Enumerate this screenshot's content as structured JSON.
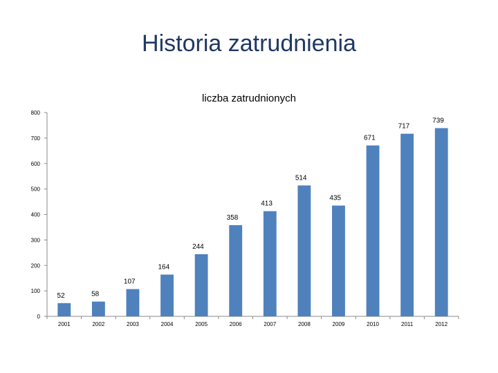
{
  "slide": {
    "title": "Historia zatrudnienia"
  },
  "chart_data": {
    "type": "bar",
    "title": "liczba zatrudnionych",
    "xlabel": "",
    "ylabel": "",
    "categories": [
      "2001",
      "2002",
      "2003",
      "2004",
      "2005",
      "2006",
      "2007",
      "2008",
      "2009",
      "2010",
      "2011",
      "2012"
    ],
    "values": [
      52,
      58,
      107,
      164,
      244,
      358,
      413,
      514,
      435,
      671,
      717,
      739
    ],
    "ylim": [
      0,
      800
    ],
    "yticks": [
      0,
      100,
      200,
      300,
      400,
      500,
      600,
      700,
      800
    ],
    "grid": false,
    "legend": "none",
    "bar_color": "#4f81bd",
    "axis_color": "#888888"
  }
}
